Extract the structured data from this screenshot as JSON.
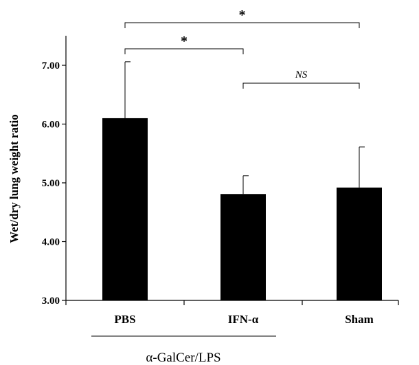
{
  "chart_data": {
    "type": "bar",
    "categories": [
      "PBS",
      "IFN-α",
      "Sham"
    ],
    "values": [
      6.1,
      4.81,
      4.92
    ],
    "error": [
      0.96,
      0.31,
      0.69
    ],
    "ylabel": "Wet/dry lung weight ratio",
    "ylim": [
      3.0,
      7.5
    ],
    "yticks": [
      "3.00",
      "4.00",
      "5.00",
      "6.00",
      "7.00"
    ],
    "ytick_values": [
      3,
      4,
      5,
      6,
      7
    ],
    "group_label": "α-GalCer/LPS",
    "group_covers": [
      "PBS",
      "IFN-α"
    ],
    "bar_color": "#000000",
    "grid": false,
    "significance": [
      {
        "from": "PBS",
        "to": "Sham",
        "label": "*"
      },
      {
        "from": "PBS",
        "to": "IFN-α",
        "label": "*"
      },
      {
        "from": "IFN-α",
        "to": "Sham",
        "label": "NS"
      }
    ]
  }
}
